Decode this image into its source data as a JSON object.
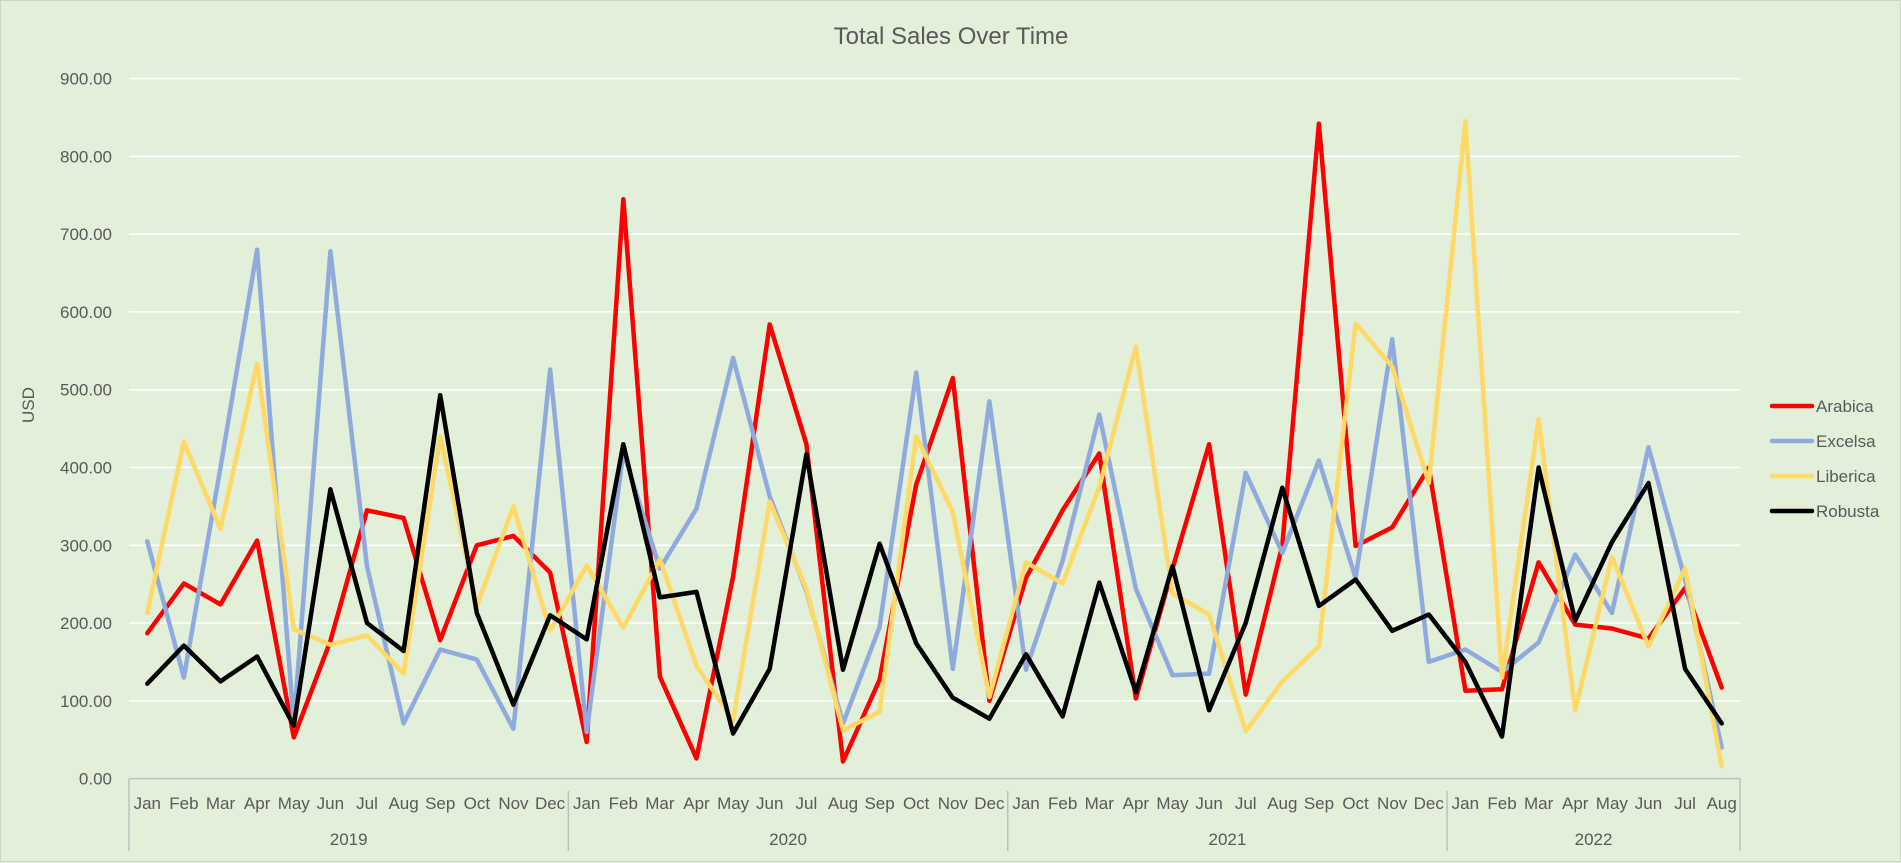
{
  "chart_data": {
    "type": "line",
    "title": "Total Sales Over Time",
    "ylabel": "USD",
    "ylim": [
      0,
      900
    ],
    "yticks": [
      "0.00",
      "100.00",
      "200.00",
      "300.00",
      "400.00",
      "500.00",
      "600.00",
      "700.00",
      "800.00",
      "900.00"
    ],
    "grid": true,
    "legend_position": "right",
    "months": [
      "Jan",
      "Feb",
      "Mar",
      "Apr",
      "May",
      "Jun",
      "Jul",
      "Aug",
      "Sep",
      "Oct",
      "Nov",
      "Dec",
      "Jan",
      "Feb",
      "Mar",
      "Apr",
      "May",
      "Jun",
      "Jul",
      "Aug",
      "Sep",
      "Oct",
      "Nov",
      "Dec",
      "Jan",
      "Feb",
      "Mar",
      "Apr",
      "May",
      "Jun",
      "Jul",
      "Aug",
      "Sep",
      "Oct",
      "Nov",
      "Dec",
      "Jan",
      "Feb",
      "Mar",
      "Apr",
      "May",
      "Jun",
      "Jul",
      "Aug"
    ],
    "years": [
      {
        "label": "2019",
        "count": 12
      },
      {
        "label": "2020",
        "count": 12
      },
      {
        "label": "2021",
        "count": 12
      },
      {
        "label": "2022",
        "count": 8
      }
    ],
    "series": [
      {
        "name": "Arabica",
        "color": "#ff0000",
        "values": [
          187,
          251,
          224,
          306,
          53,
          177,
          345,
          335,
          178,
          300,
          312,
          265,
          47,
          745,
          131,
          26,
          260,
          584,
          430,
          22,
          127,
          378,
          515,
          100,
          258,
          345,
          418,
          103,
          270,
          430,
          108,
          300,
          842,
          299,
          323,
          400,
          113,
          115,
          278,
          198,
          193,
          180,
          245,
          117
        ]
      },
      {
        "name": "Excelsa",
        "color": "#8faadc",
        "values": [
          305,
          130,
          400,
          680,
          71,
          678,
          273,
          71,
          166,
          153,
          64,
          526,
          60,
          420,
          270,
          347,
          541,
          363,
          241,
          71,
          195,
          522,
          141,
          485,
          140,
          280,
          468,
          244,
          133,
          135,
          393,
          290,
          409,
          258,
          565,
          150,
          166,
          137,
          175,
          288,
          213,
          426,
          256,
          40
        ]
      },
      {
        "name": "Liberica",
        "color": "#ffd966",
        "values": [
          213,
          433,
          321,
          534,
          192,
          172,
          184,
          135,
          440,
          222,
          350,
          190,
          274,
          194,
          282,
          145,
          75,
          356,
          244,
          62,
          86,
          440,
          343,
          105,
          278,
          251,
          375,
          555,
          238,
          211,
          61,
          125,
          170,
          585,
          530,
          380,
          845,
          130,
          462,
          88,
          285,
          170,
          270,
          16
        ]
      },
      {
        "name": "Robusta",
        "color": "#000000",
        "values": [
          122,
          171,
          125,
          157,
          68,
          372,
          200,
          164,
          493,
          213,
          95,
          210,
          179,
          430,
          233,
          240,
          58,
          141,
          417,
          140,
          302,
          174,
          104,
          77,
          160,
          80,
          252,
          111,
          273,
          88,
          200,
          374,
          222,
          256,
          190,
          211,
          150,
          54,
          400,
          203,
          304,
          380,
          141,
          71
        ]
      }
    ]
  }
}
